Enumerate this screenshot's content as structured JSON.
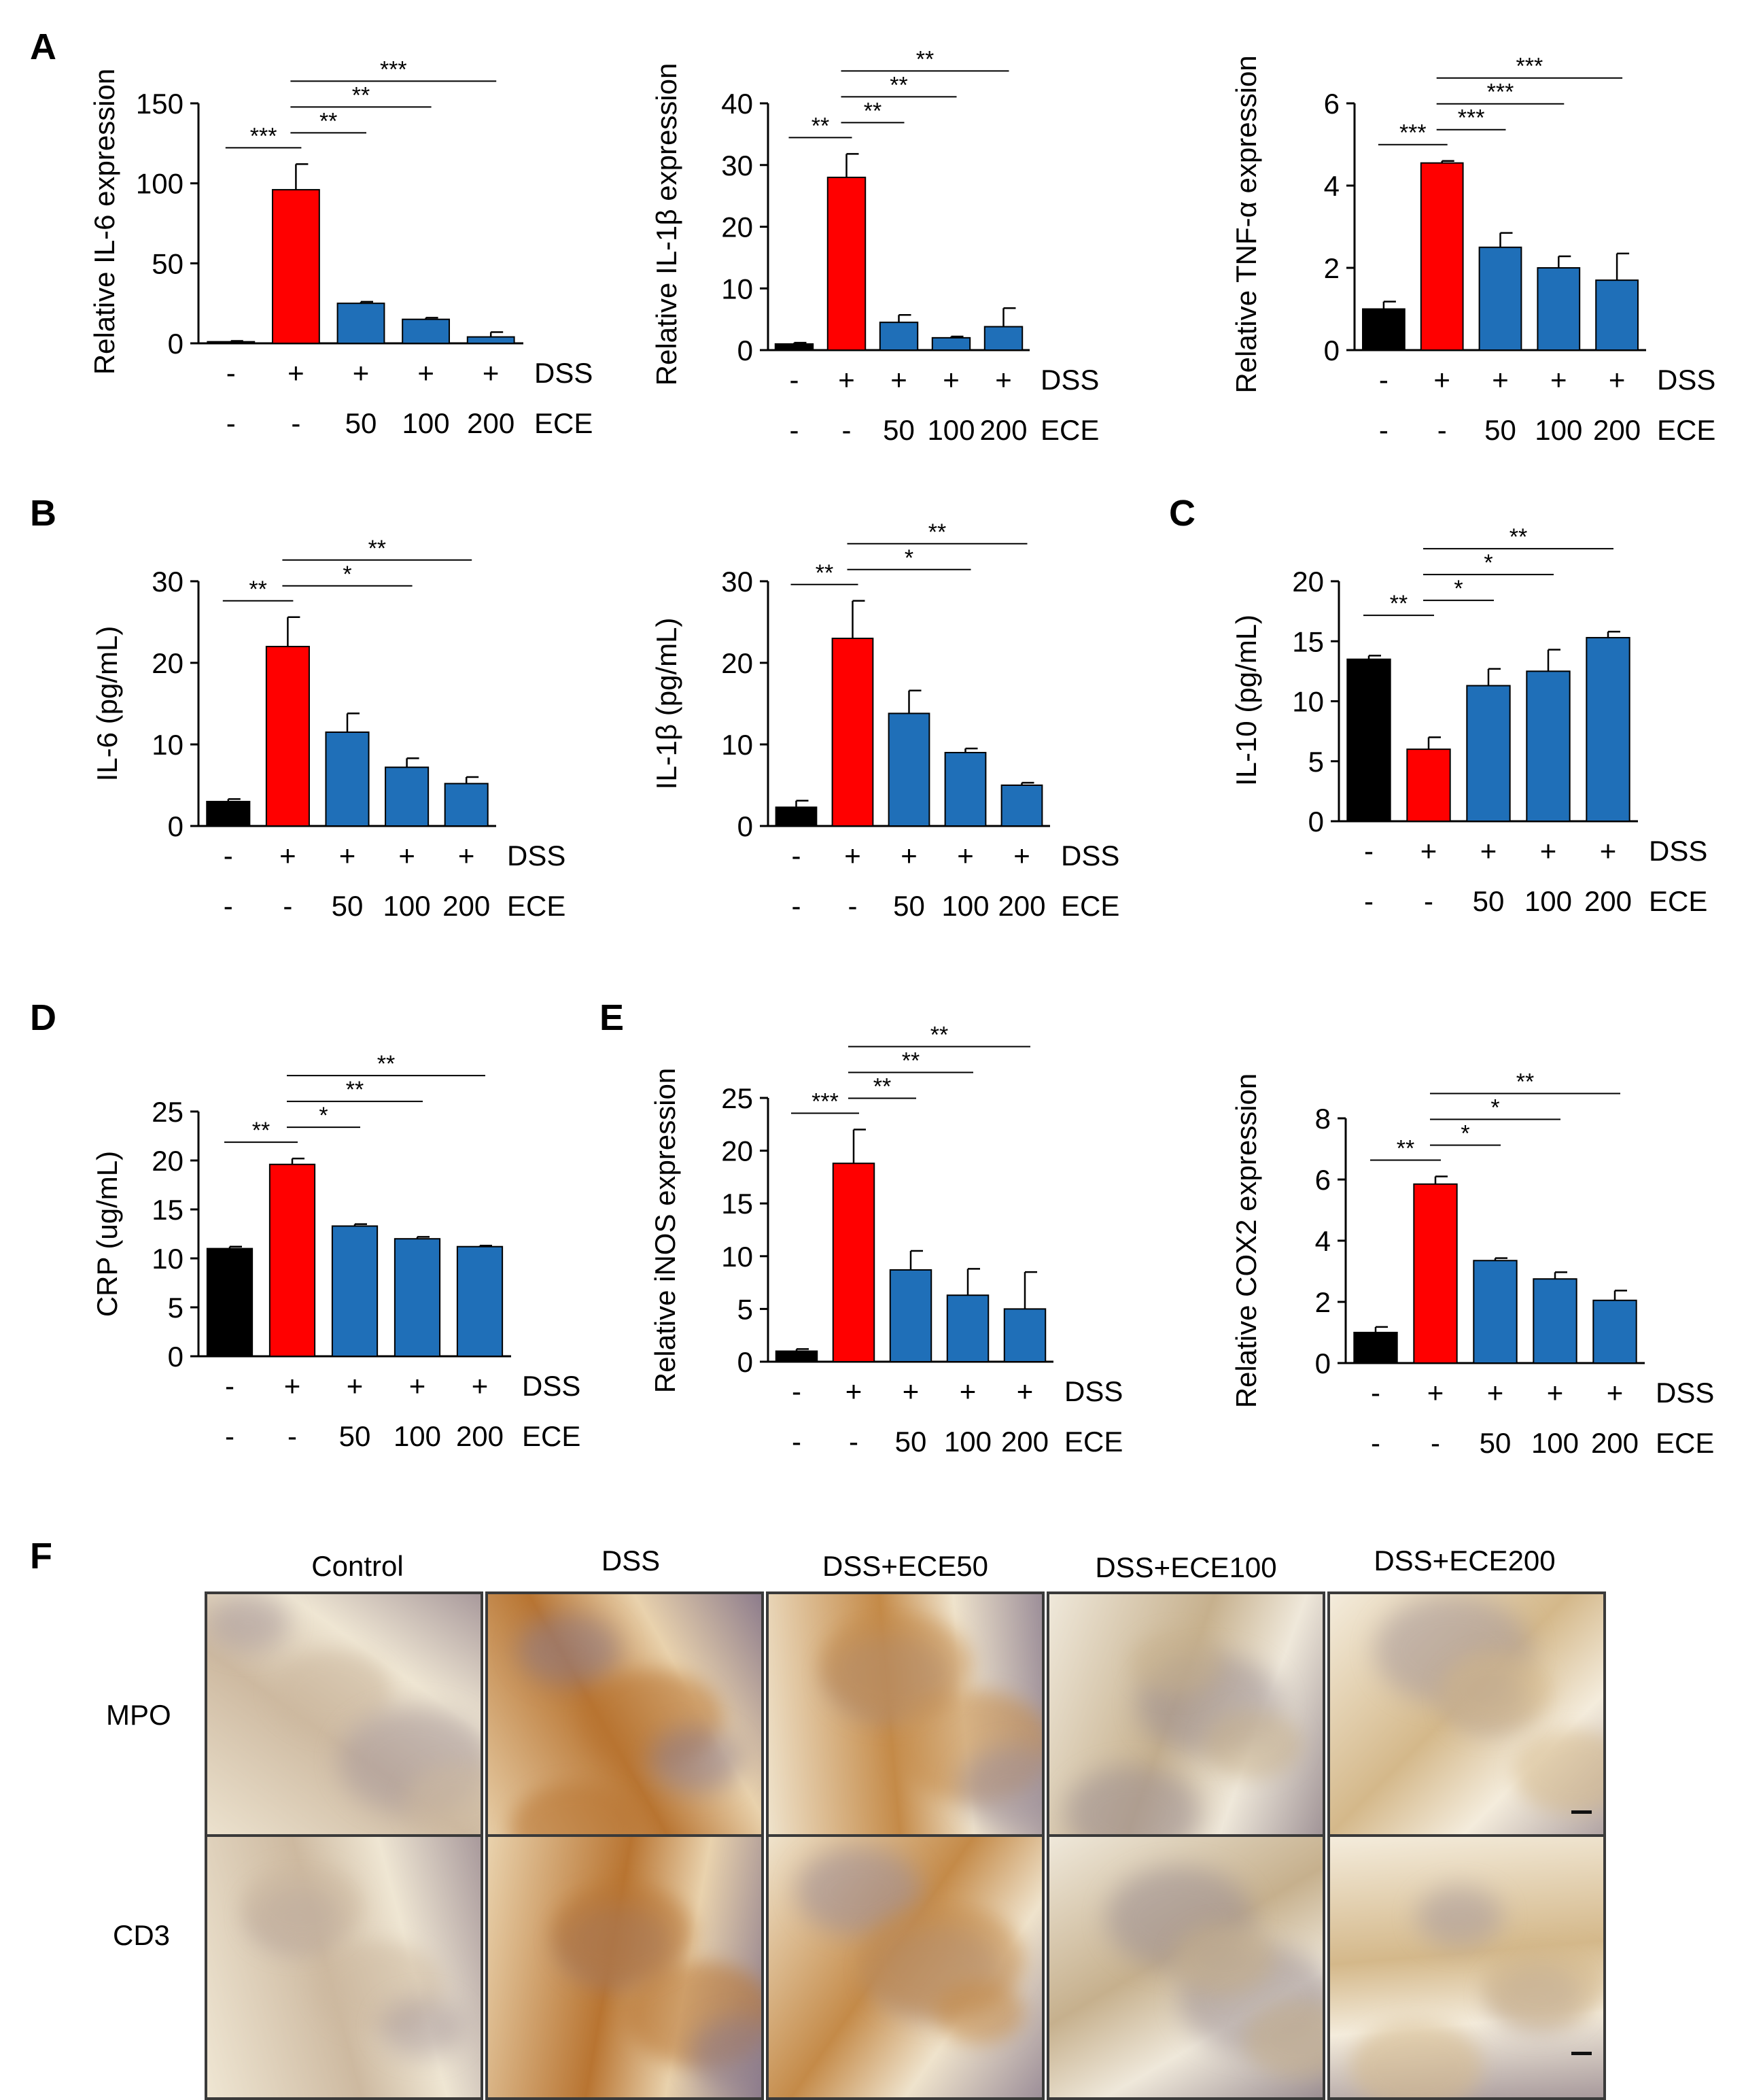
{
  "panel_letters": [
    "A",
    "B",
    "C",
    "D",
    "E",
    "F"
  ],
  "row_labels": {
    "dss": "DSS",
    "ece": "ECE"
  },
  "colors": {
    "control": "#000000",
    "dss": "#ff0000",
    "ece": "#1f6fb8"
  },
  "chart_data": [
    {
      "id": "A1",
      "type": "bar",
      "ylabel": "Relative IL-6 expression",
      "ylim": [
        0,
        150
      ],
      "yticks": [
        0,
        50,
        100,
        150
      ],
      "dss_row": [
        "-",
        "+",
        "+",
        "+",
        "+"
      ],
      "ece_row": [
        "-",
        "-",
        "50",
        "100",
        "200"
      ],
      "values": [
        1,
        96,
        25,
        15,
        4
      ],
      "errors": [
        0.5,
        16,
        1,
        1,
        3
      ],
      "significance": [
        {
          "from": 0,
          "to": 1,
          "label": "***"
        },
        {
          "from": 1,
          "to": 2,
          "label": "**"
        },
        {
          "from": 1,
          "to": 3,
          "label": "**"
        },
        {
          "from": 1,
          "to": 4,
          "label": "***"
        }
      ]
    },
    {
      "id": "A2",
      "type": "bar",
      "ylabel": "Relative IL-1β  expression",
      "ylim": [
        0,
        40
      ],
      "yticks": [
        0,
        10,
        20,
        30,
        40
      ],
      "dss_row": [
        "-",
        "+",
        "+",
        "+",
        "+"
      ],
      "ece_row": [
        "-",
        "-",
        "50",
        "100",
        "200"
      ],
      "values": [
        1,
        28,
        4.5,
        2,
        3.8
      ],
      "errors": [
        0.2,
        3.8,
        1.2,
        0.2,
        3
      ],
      "significance": [
        {
          "from": 0,
          "to": 1,
          "label": "**"
        },
        {
          "from": 1,
          "to": 2,
          "label": "**"
        },
        {
          "from": 1,
          "to": 3,
          "label": "**"
        },
        {
          "from": 1,
          "to": 4,
          "label": "**"
        }
      ]
    },
    {
      "id": "A3",
      "type": "bar",
      "ylabel": "Relative TNF-α expression",
      "ylim": [
        0,
        6
      ],
      "yticks": [
        0,
        2,
        4,
        6
      ],
      "dss_row": [
        "-",
        "+",
        "+",
        "+",
        "+"
      ],
      "ece_row": [
        "-",
        "-",
        "50",
        "100",
        "200"
      ],
      "values": [
        1,
        4.55,
        2.5,
        2.0,
        1.7
      ],
      "errors": [
        0.18,
        0.05,
        0.35,
        0.28,
        0.65
      ],
      "significance": [
        {
          "from": 0,
          "to": 1,
          "label": "***"
        },
        {
          "from": 1,
          "to": 2,
          "label": "***"
        },
        {
          "from": 1,
          "to": 3,
          "label": "***"
        },
        {
          "from": 1,
          "to": 4,
          "label": "***"
        }
      ]
    },
    {
      "id": "B1",
      "type": "bar",
      "ylabel": "IL-6 (pg/mL)",
      "ylim": [
        0,
        30
      ],
      "yticks": [
        0,
        10,
        20,
        30
      ],
      "dss_row": [
        "-",
        "+",
        "+",
        "+",
        "+"
      ],
      "ece_row": [
        "-",
        "-",
        "50",
        "100",
        "200"
      ],
      "values": [
        3,
        22,
        11.5,
        7.2,
        5.2
      ],
      "errors": [
        0.3,
        3.6,
        2.3,
        1.1,
        0.8
      ],
      "significance": [
        {
          "from": 0,
          "to": 1,
          "label": "**"
        },
        {
          "from": 1,
          "to": 3,
          "label": "*"
        },
        {
          "from": 1,
          "to": 4,
          "label": "**"
        }
      ]
    },
    {
      "id": "B2",
      "type": "bar",
      "ylabel": "IL-1β (pg/mL)",
      "ylim": [
        0,
        30
      ],
      "yticks": [
        0,
        10,
        20,
        30
      ],
      "dss_row": [
        "-",
        "+",
        "+",
        "+",
        "+"
      ],
      "ece_row": [
        "-",
        "-",
        "50",
        "100",
        "200"
      ],
      "values": [
        2.3,
        23,
        13.8,
        9,
        5
      ],
      "errors": [
        0.8,
        4.6,
        2.8,
        0.5,
        0.3
      ],
      "significance": [
        {
          "from": 0,
          "to": 1,
          "label": "**"
        },
        {
          "from": 1,
          "to": 3,
          "label": "*"
        },
        {
          "from": 1,
          "to": 4,
          "label": "**"
        }
      ]
    },
    {
      "id": "C",
      "type": "bar",
      "ylabel": "IL-10 (pg/mL)",
      "ylim": [
        0,
        20
      ],
      "yticks": [
        0,
        5,
        10,
        15,
        20
      ],
      "dss_row": [
        "-",
        "+",
        "+",
        "+",
        "+"
      ],
      "ece_row": [
        "-",
        "-",
        "50",
        "100",
        "200"
      ],
      "values": [
        13.5,
        6,
        11.3,
        12.5,
        15.3
      ],
      "errors": [
        0.3,
        1,
        1.4,
        1.8,
        0.5
      ],
      "significance": [
        {
          "from": 0,
          "to": 1,
          "label": "**"
        },
        {
          "from": 1,
          "to": 2,
          "label": "*"
        },
        {
          "from": 1,
          "to": 3,
          "label": "*"
        },
        {
          "from": 1,
          "to": 4,
          "label": "**"
        }
      ]
    },
    {
      "id": "D",
      "type": "bar",
      "ylabel": "CRP (ug/mL)",
      "ylim": [
        0,
        25
      ],
      "yticks": [
        0,
        5,
        10,
        15,
        20,
        25
      ],
      "dss_row": [
        "-",
        "+",
        "+",
        "+",
        "+"
      ],
      "ece_row": [
        "-",
        "-",
        "50",
        "100",
        "200"
      ],
      "values": [
        11,
        19.6,
        13.3,
        12,
        11.2
      ],
      "errors": [
        0.2,
        0.6,
        0.2,
        0.2,
        0.1
      ],
      "significance": [
        {
          "from": 0,
          "to": 1,
          "label": "**"
        },
        {
          "from": 1,
          "to": 2,
          "label": "*"
        },
        {
          "from": 1,
          "to": 3,
          "label": "**"
        },
        {
          "from": 1,
          "to": 4,
          "label": "**"
        }
      ]
    },
    {
      "id": "E1",
      "type": "bar",
      "ylabel": "Relative iNOS  expression",
      "ylim": [
        0,
        25
      ],
      "yticks": [
        0,
        5,
        10,
        15,
        20,
        25
      ],
      "dss_row": [
        "-",
        "+",
        "+",
        "+",
        "+"
      ],
      "ece_row": [
        "-",
        "-",
        "50",
        "100",
        "200"
      ],
      "values": [
        1,
        18.8,
        8.7,
        6.3,
        5
      ],
      "errors": [
        0.2,
        3.2,
        1.8,
        2.5,
        3.5
      ],
      "significance": [
        {
          "from": 0,
          "to": 1,
          "label": "***"
        },
        {
          "from": 1,
          "to": 2,
          "label": "**"
        },
        {
          "from": 1,
          "to": 3,
          "label": "**"
        },
        {
          "from": 1,
          "to": 4,
          "label": "**"
        }
      ]
    },
    {
      "id": "E2",
      "type": "bar",
      "ylabel": "Relative COX2  expression",
      "ylim": [
        0,
        8
      ],
      "yticks": [
        0,
        2,
        4,
        6,
        8
      ],
      "dss_row": [
        "-",
        "+",
        "+",
        "+",
        "+"
      ],
      "ece_row": [
        "-",
        "-",
        "50",
        "100",
        "200"
      ],
      "values": [
        1,
        5.85,
        3.35,
        2.75,
        2.05
      ],
      "errors": [
        0.18,
        0.25,
        0.08,
        0.22,
        0.32
      ],
      "significance": [
        {
          "from": 0,
          "to": 1,
          "label": "**"
        },
        {
          "from": 1,
          "to": 2,
          "label": "*"
        },
        {
          "from": 1,
          "to": 3,
          "label": "*"
        },
        {
          "from": 1,
          "to": 4,
          "label": "**"
        }
      ]
    }
  ],
  "histology": {
    "columns": [
      "Control",
      "DSS",
      "DSS+ECE50",
      "DSS+ECE100",
      "DSS+ECE200"
    ],
    "rows": [
      "MPO",
      "CD3"
    ]
  }
}
